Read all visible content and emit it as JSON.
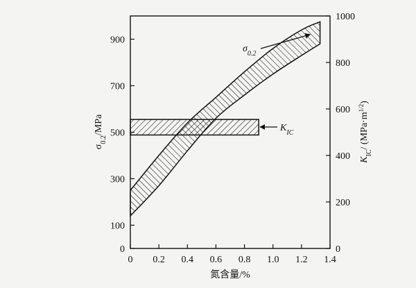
{
  "chart_data": {
    "type": "area",
    "xlabel": "氮含量/%",
    "ylabel_left": "σ0.2/MPa",
    "ylabel_right": "KIC/ (MPa·m1/2)",
    "x_ticks": [
      "0",
      "0.2",
      "0.4",
      "0.6",
      "0.8",
      "1.0",
      "1.2",
      "1.4"
    ],
    "y_left_ticks": [
      {
        "value": 0,
        "label": "0"
      },
      {
        "value": 100,
        "label": "100"
      },
      {
        "value": 300,
        "label": "300"
      },
      {
        "value": 500,
        "label": "500"
      },
      {
        "value": 700,
        "label": "700"
      },
      {
        "value": 900,
        "label": "900"
      }
    ],
    "y_right_ticks": [
      "0",
      "200",
      "400",
      "600",
      "800",
      "1000"
    ],
    "xlim": [
      0,
      1.4
    ],
    "ylim_left": [
      0,
      1000
    ],
    "ylim_right": [
      0,
      1000
    ],
    "series": [
      {
        "name": "σ0.2",
        "label_main": "σ",
        "label_sub": "0.2",
        "axis": "left",
        "band_x": [
          0,
          0.2,
          0.4,
          0.6,
          0.8,
          1.0,
          1.2,
          1.33
        ],
        "band_lower": [
          140,
          270,
          420,
          560,
          660,
          750,
          830,
          880
        ],
        "band_upper": [
          250,
          400,
          540,
          650,
          760,
          860,
          940,
          975
        ]
      },
      {
        "name": "KIC",
        "label_main": "K",
        "label_sub": "IC",
        "axis": "right",
        "band_x": [
          0,
          0.9
        ],
        "band_lower": [
          488,
          488
        ],
        "band_upper": [
          555,
          555
        ]
      }
    ]
  }
}
